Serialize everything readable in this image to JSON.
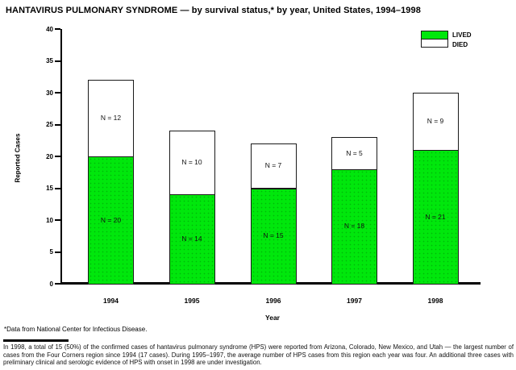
{
  "title": "HANTAVIRUS PULMONARY SYNDROME — by survival status,* by year, United States, 1994–1998",
  "chart_data": {
    "type": "bar",
    "stacked": true,
    "title": "HANTAVIRUS PULMONARY SYNDROME — by survival status,* by year, United States, 1994–1998",
    "categories": [
      "1994",
      "1995",
      "1996",
      "1997",
      "1998"
    ],
    "series": [
      {
        "name": "LIVED",
        "color": "#00e70c",
        "values": [
          20,
          14,
          15,
          18,
          21
        ],
        "labels": [
          "N = 20",
          "N = 14",
          "N = 15",
          "N = 18",
          "N = 21"
        ]
      },
      {
        "name": "DIED",
        "color": "#ffffff",
        "values": [
          12,
          10,
          7,
          5,
          9
        ],
        "labels": [
          "N = 12",
          "N = 10",
          "N = 7",
          "N = 5",
          "N = 9"
        ]
      }
    ],
    "totals": [
      32,
      24,
      22,
      23,
      30
    ],
    "xlabel": "Year",
    "ylabel": "Reported Cases",
    "ylim": [
      0,
      40
    ],
    "yticks": [
      "0",
      "5",
      "10",
      "15",
      "20",
      "25",
      "30",
      "35",
      "40"
    ],
    "legend": [
      "LIVED",
      "DIED"
    ],
    "legend_position": "top-right",
    "grid": false
  },
  "footnote": "*Data from National Center for Infectious Disease.",
  "body_text": "In 1998, a total of 15 (50%) of the confirmed cases of hantavirus pulmonary syndrome (HPS) were reported from Arizona, Colorado, New Mexico, and Utah — the largest number of cases from the Four Corners region since 1994 (17 cases). During 1995–1997, the average number of HPS cases from this region each year was four. An additional three cases with preliminary clinical and serologic evidence of HPS with onset in 1998 are under investigation.",
  "colors": {
    "lived": "#00e70c",
    "died": "#ffffff",
    "axis": "#000000"
  }
}
